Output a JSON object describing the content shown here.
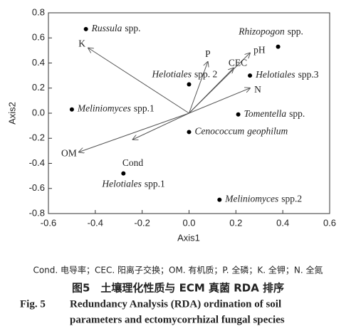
{
  "chart_data": {
    "type": "biplot",
    "xlabel": "Axis1",
    "ylabel": "Axis2",
    "xlim": [
      -0.6,
      0.6
    ],
    "xticks": [
      -0.6,
      -0.4,
      -0.2,
      {
        "value": 0,
        "label": "0.0"
      },
      0.2,
      0.4,
      0.6
    ],
    "ylim": [
      -0.8,
      0.8
    ],
    "yticks": [
      -0.8,
      -0.6,
      -0.4,
      -0.2,
      {
        "value": 0,
        "label": "0.0"
      },
      0.2,
      0.4,
      0.6,
      0.8
    ],
    "point_color": "#000000",
    "arrow_color": "#555555",
    "points": [
      {
        "label_parts": [
          {
            "text": "Russula",
            "italic": true
          },
          {
            "text": "spp."
          }
        ],
        "x": -0.44,
        "y": 0.67
      },
      {
        "label_parts": [
          {
            "text": "Rhizopogon",
            "italic": true
          },
          {
            "text": "spp."
          }
        ],
        "x": 0.38,
        "y": 0.53
      },
      {
        "label_parts": [
          {
            "text": "Helotiales",
            "italic": true
          },
          {
            "text": "spp. 2"
          }
        ],
        "x": 0.0,
        "y": 0.23
      },
      {
        "label_parts": [
          {
            "text": "Helotiales",
            "italic": true
          },
          {
            "text": "spp.3"
          }
        ],
        "x": 0.26,
        "y": 0.3
      },
      {
        "label_parts": [
          {
            "text": "Meliniomyces",
            "italic": true
          },
          {
            "text": "spp.1"
          }
        ],
        "x": -0.5,
        "y": 0.03
      },
      {
        "label_parts": [
          {
            "text": "Tomentella",
            "italic": true
          },
          {
            "text": "spp."
          }
        ],
        "x": 0.21,
        "y": -0.01
      },
      {
        "label_parts": [
          {
            "text": "Cenococcum",
            "italic": true
          },
          {
            "text": "geophilum",
            "italic": true
          }
        ],
        "x": 0.0,
        "y": -0.15
      },
      {
        "label_parts": [
          {
            "text": "Helotiales",
            "italic": true
          },
          {
            "text": "spp.1"
          }
        ],
        "x": -0.28,
        "y": -0.48
      },
      {
        "label_parts": [
          {
            "text": "Meliniomyces",
            "italic": true
          },
          {
            "text": "spp.2"
          }
        ],
        "x": 0.13,
        "y": -0.69
      }
    ],
    "arrows": [
      {
        "name": "K",
        "x": -0.43,
        "y": 0.52
      },
      {
        "name": "P",
        "x": 0.08,
        "y": 0.41
      },
      {
        "name": "pH",
        "x": 0.26,
        "y": 0.48
      },
      {
        "name": "CEC",
        "x": 0.19,
        "y": 0.36
      },
      {
        "name": "N",
        "x": 0.26,
        "y": 0.2
      },
      {
        "name": "OM",
        "x": -0.47,
        "y": -0.31
      },
      {
        "name": "Cond",
        "x": -0.24,
        "y": -0.21
      }
    ]
  },
  "caption": {
    "note": "Cond. 电导率；CEC. 阳离子交换；OM. 有机质；P. 全磷；K. 全钾；N. 全氮",
    "title_cn": "图5　土壤理化性质与 ECM 真菌 RDA 排序",
    "label_en": "Fig. 5",
    "title_en": [
      "Redundancy Analysis (RDA) ordination of soil",
      "parameters and ectomycorrhizal fungal species"
    ]
  }
}
